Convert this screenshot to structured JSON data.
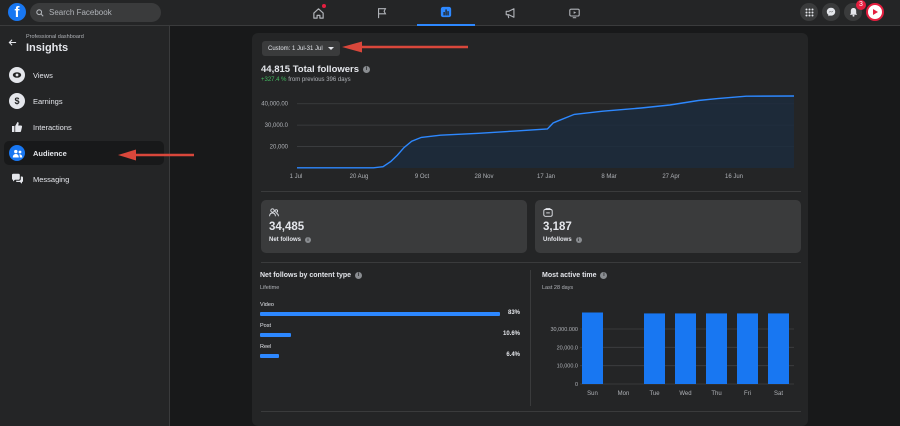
{
  "topbar": {
    "search_placeholder": "Search Facebook",
    "notification_count": "3",
    "tabs": [
      {
        "icon": "home-icon"
      },
      {
        "icon": "flag-icon"
      },
      {
        "icon": "insights-icon"
      },
      {
        "icon": "megaphone-icon"
      },
      {
        "icon": "video-icon"
      }
    ]
  },
  "sidebar": {
    "subtitle": "Professional dashboard",
    "title": "Insights",
    "items": [
      {
        "label": "Views",
        "icon": "eye-icon"
      },
      {
        "label": "Earnings",
        "icon": "dollar-icon"
      },
      {
        "label": "Interactions",
        "icon": "thumbs-up-icon"
      },
      {
        "label": "Audience",
        "icon": "people-icon",
        "active": true
      },
      {
        "label": "Messaging",
        "icon": "chat-icon"
      }
    ]
  },
  "main": {
    "date_range": "Custom: 1 Jul-31 Jul",
    "total_followers": "44,815 Total followers",
    "change_pct": "+327.4 %",
    "change_text": "from previous 396 days",
    "net_follows_value": "34,485",
    "net_follows_label": "Net follows",
    "unfollows_value": "3,187",
    "unfollows_label": "Unfollows",
    "content_type_title": "Net follows by content type",
    "content_type_sub": "Lifetime",
    "content_types": [
      {
        "label": "Video",
        "pct": "83%",
        "value": 83
      },
      {
        "label": "Post",
        "pct": "10.6%",
        "value": 10.6
      },
      {
        "label": "Reel",
        "pct": "6.4%",
        "value": 6.4
      }
    ],
    "active_time_title": "Most active time",
    "active_time_sub": "Last 28 days"
  },
  "chart_data": [
    {
      "type": "area",
      "y_ticks": [
        "40,000.00",
        "30,000.0",
        "20,000"
      ],
      "x_ticks": [
        "1 Jul",
        "20 Aug",
        "9 Oct",
        "28 Nov",
        "17 Jan",
        "8 Mar",
        "27 Apr",
        "16 Jun"
      ],
      "ylim": [
        10000,
        45000
      ],
      "series": [
        {
          "values": [
            [
              0,
              10100
            ],
            [
              80,
              10100
            ],
            [
              90,
              10600
            ],
            [
              98,
              13000
            ],
            [
              105,
              16000
            ],
            [
              112,
              19500
            ],
            [
              120,
              22500
            ],
            [
              130,
              24300
            ],
            [
              150,
              25300
            ],
            [
              190,
              26200
            ],
            [
              230,
              27300
            ],
            [
              262,
              28200
            ],
            [
              268,
              31000
            ],
            [
              272,
              31800
            ],
            [
              290,
              35000
            ],
            [
              320,
              36500
            ],
            [
              360,
              38000
            ],
            [
              390,
              39400
            ],
            [
              420,
              41500
            ],
            [
              440,
              42400
            ],
            [
              470,
              43500
            ],
            [
              520,
              43600
            ]
          ]
        }
      ]
    },
    {
      "type": "bar",
      "categories": [
        "Sun",
        "Mon",
        "Tue",
        "Wed",
        "Thu",
        "Fri",
        "Sat"
      ],
      "values": [
        39000,
        0,
        38500,
        38500,
        38500,
        38500,
        38500
      ],
      "y_ticks": [
        "30,000.000",
        "20,000.0",
        "10,000.0",
        "0"
      ],
      "ylim": [
        0,
        42000
      ]
    }
  ],
  "colors": {
    "accent": "#1877f2",
    "bar": "#1877f2",
    "positive": "#45bd62",
    "arrow": "#d9473b"
  }
}
